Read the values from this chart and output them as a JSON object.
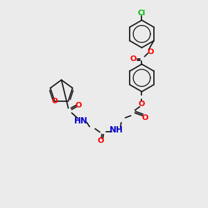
{
  "bg_color": "#ebebeb",
  "bond_color": "#1a1a1a",
  "atom_colors": {
    "O": "#ff0000",
    "N": "#0000cd",
    "Cl": "#00bb00",
    "C": "#1a1a1a",
    "H": "#666666"
  },
  "figsize": [
    3.0,
    3.0
  ],
  "dpi": 100,
  "lw": 1.3,
  "fs": 7.5
}
